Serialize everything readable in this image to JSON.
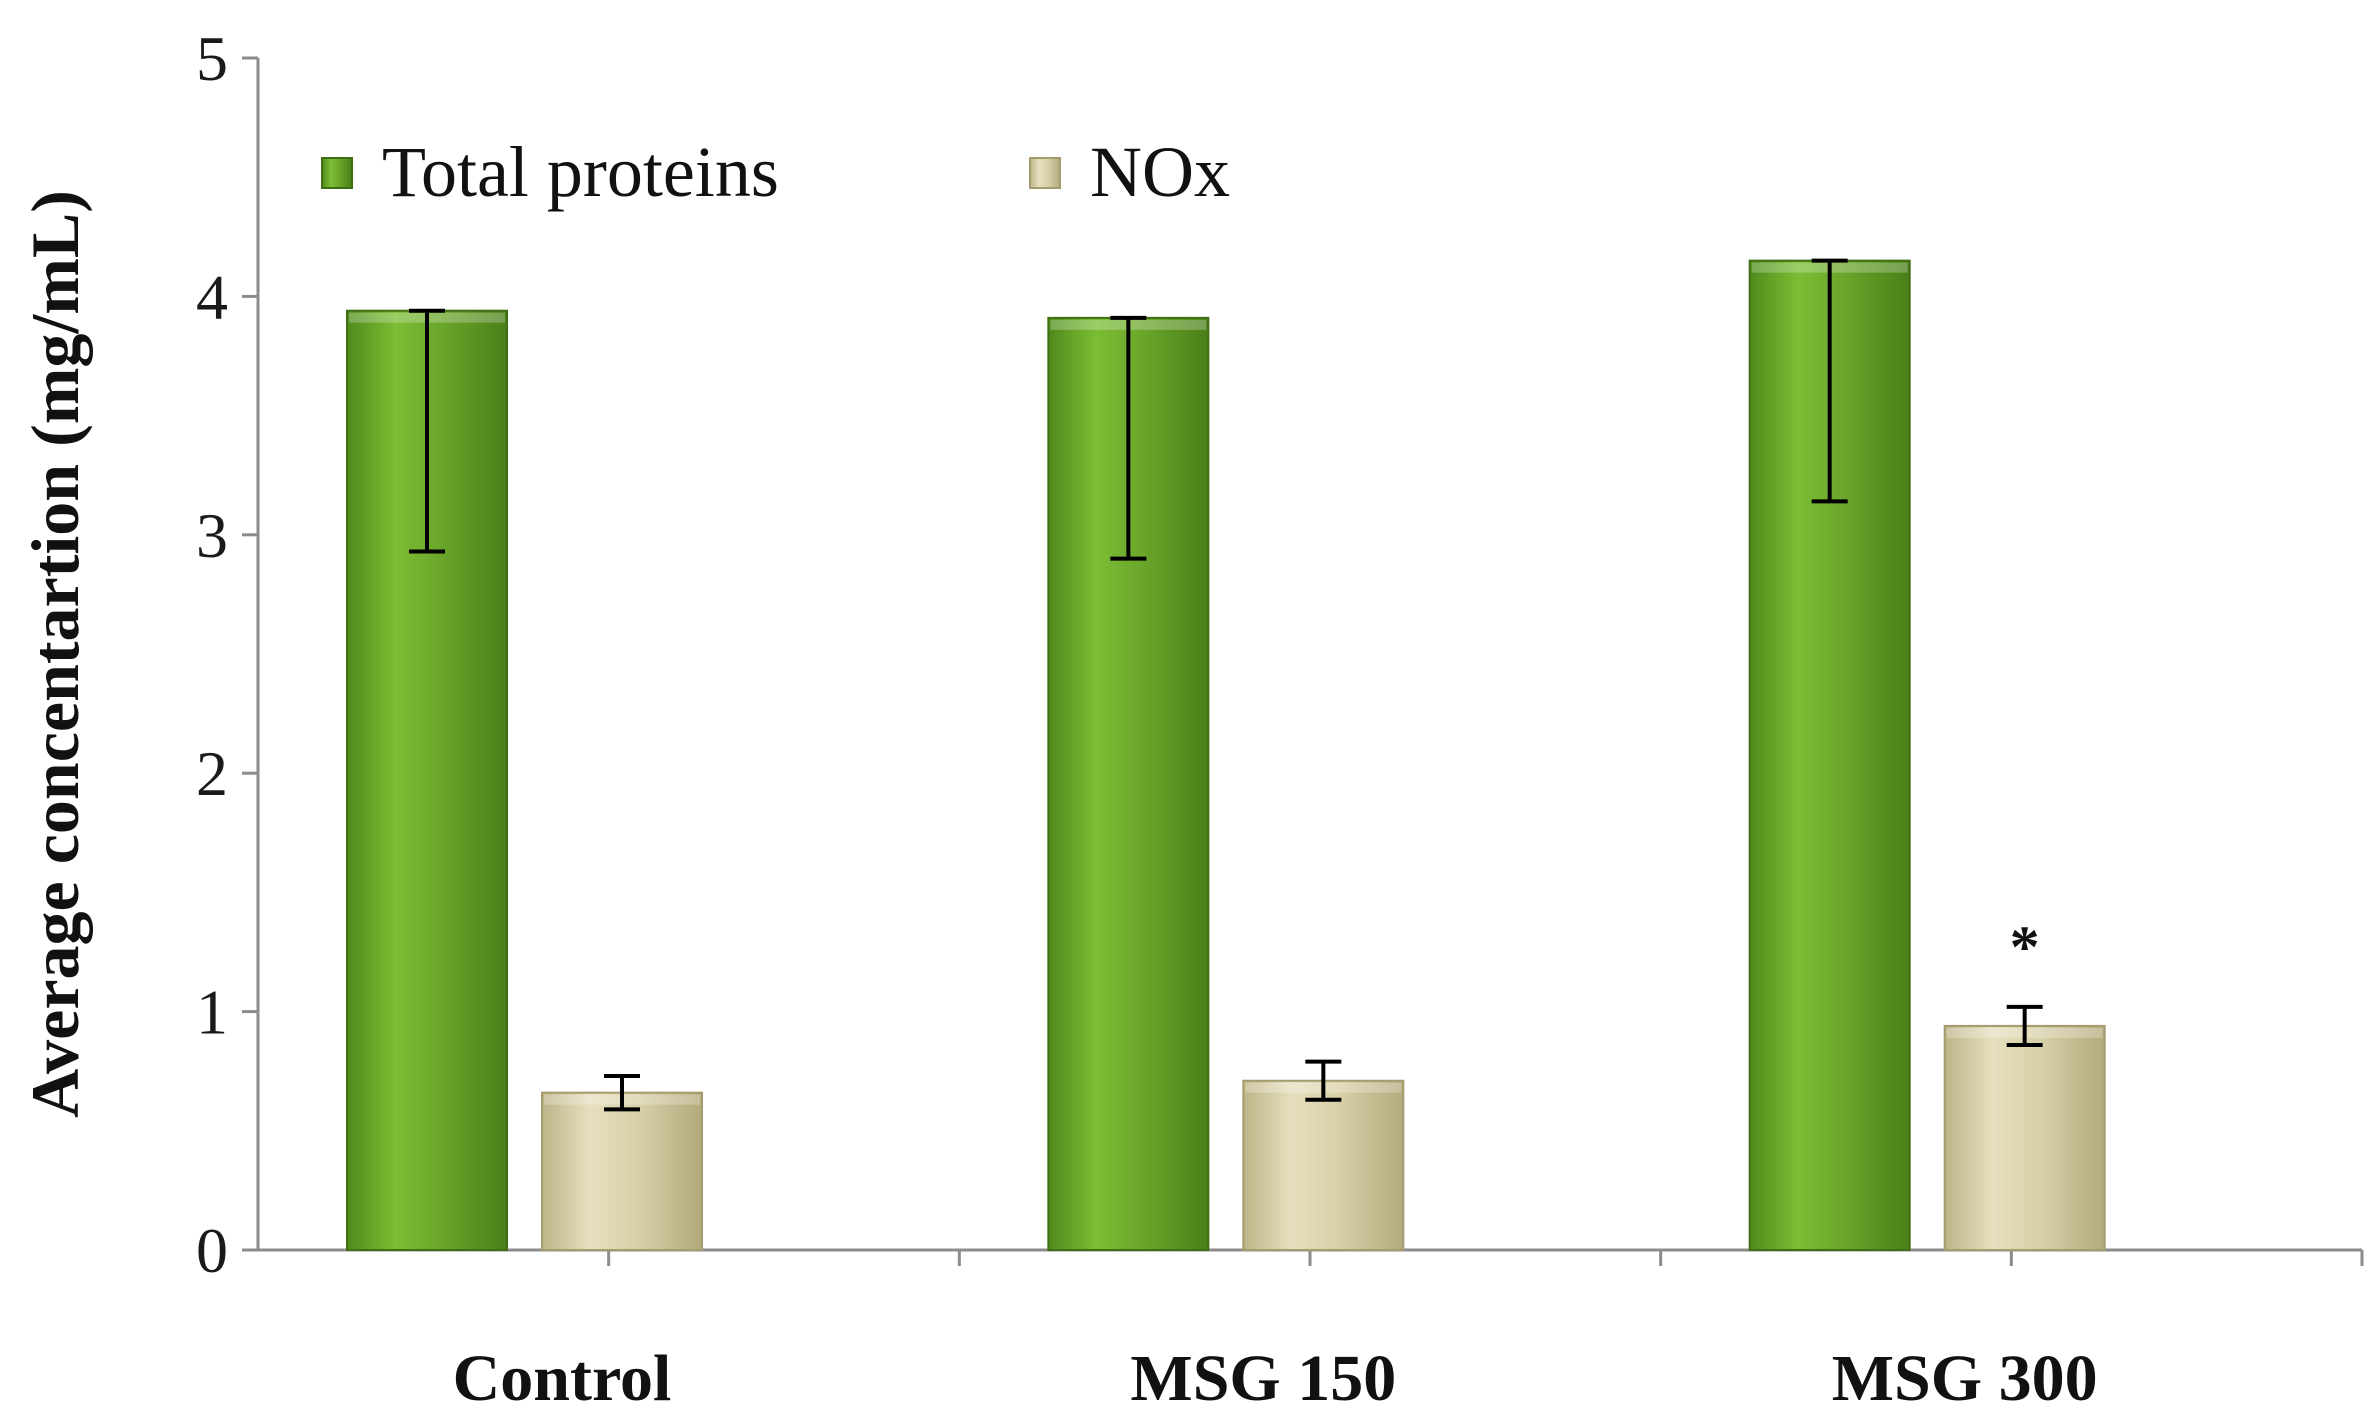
{
  "chart_data": {
    "type": "bar",
    "categories": [
      "Control",
      "MSG 150",
      "MSG 300"
    ],
    "series": [
      {
        "name": "Total proteins",
        "values": [
          3.94,
          3.91,
          4.15
        ],
        "errors": [
          1.01,
          1.01,
          1.01
        ]
      },
      {
        "name": "NOx",
        "values": [
          0.66,
          0.71,
          0.94
        ],
        "errors": [
          0.07,
          0.08,
          0.08
        ]
      }
    ],
    "ylabel": "Average concentartion (mg/mL)",
    "xlabel": "",
    "ylim": [
      0,
      5
    ],
    "yticks": [
      "0",
      "1",
      "2",
      "3",
      "4",
      "5"
    ],
    "grid": false,
    "legend_position": "top-left",
    "annotations": [
      {
        "category": "MSG 300",
        "series": "NOx",
        "text": "*"
      }
    ],
    "colors": {
      "Total proteins": "#6aa52a",
      "NOx": "#d8d0a8"
    }
  }
}
